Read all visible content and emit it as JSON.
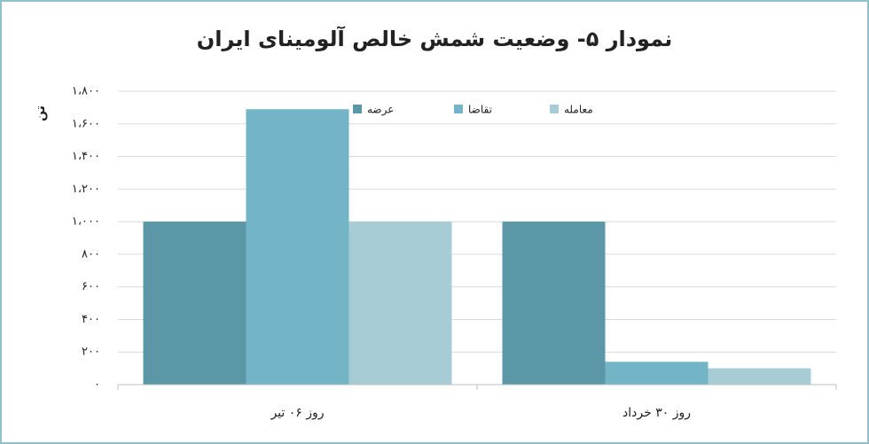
{
  "chart_data": {
    "type": "bar",
    "title": "نمودار ۵- وضعیت شمش خالص آلومینای ایران",
    "y_label": "تن",
    "categories": [
      "روز ۰۶ تیر",
      "روز ۳۰ خرداد"
    ],
    "series": [
      {
        "name": "عرضه",
        "color": "#5b97a6",
        "values": [
          1000,
          1000
        ]
      },
      {
        "name": "تقاضا",
        "color": "#73b4c7",
        "values": [
          1690,
          140
        ]
      },
      {
        "name": "معامله",
        "color": "#a7ccd6",
        "values": [
          1000,
          100
        ]
      }
    ],
    "ylim": [
      0,
      1800
    ],
    "yticks": [
      {
        "value": 0,
        "label": "۰"
      },
      {
        "value": 200,
        "label": "۲۰۰"
      },
      {
        "value": 400,
        "label": "۴۰۰"
      },
      {
        "value": 600,
        "label": "۶۰۰"
      },
      {
        "value": 800,
        "label": "۸۰۰"
      },
      {
        "value": 1000,
        "label": "۱،۰۰۰"
      },
      {
        "value": 1200,
        "label": "۱،۲۰۰"
      },
      {
        "value": 1400,
        "label": "۱،۴۰۰"
      },
      {
        "value": 1600,
        "label": "۱،۶۰۰"
      },
      {
        "value": 1800,
        "label": "۱،۸۰۰"
      }
    ],
    "grid": true
  }
}
